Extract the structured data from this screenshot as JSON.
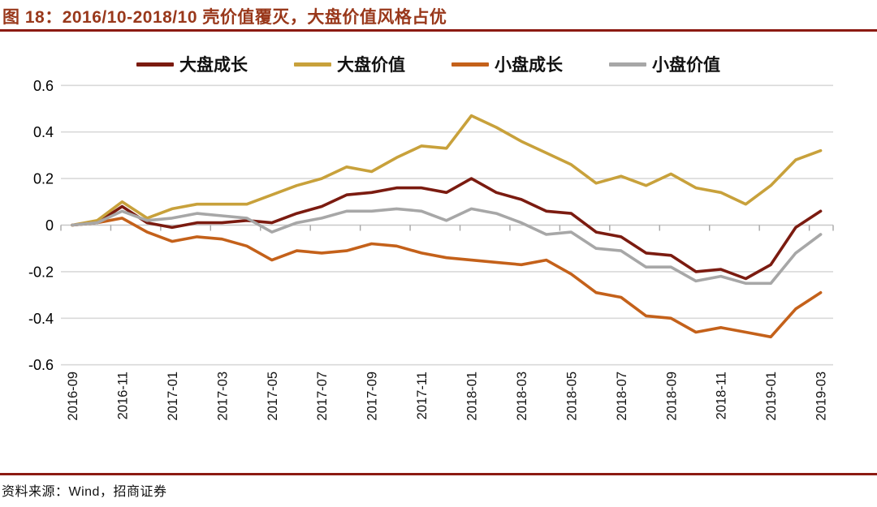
{
  "title": "图 18：2016/10-2018/10 壳价值覆灭，大盘价值风格占优",
  "source": "资料来源：Wind，招商证券",
  "colors": {
    "title_text": "#99381B",
    "rule": "#8C1A12",
    "gridline": "#D9D9D9",
    "zero_axis": "#C8C8C8",
    "tick": "#A6A6A6",
    "axis_text": "#000000"
  },
  "chart_data": {
    "type": "line",
    "title": "",
    "xlabel": "",
    "ylabel": "",
    "ylim": [
      -0.6,
      0.6
    ],
    "y_ticks": [
      0.6,
      0.4,
      0.2,
      0,
      -0.2,
      -0.4,
      -0.6
    ],
    "grid": "horizontal",
    "legend_position": "top",
    "x": [
      "2016-09",
      "2016-10",
      "2016-11",
      "2016-12",
      "2017-01",
      "2017-02",
      "2017-03",
      "2017-04",
      "2017-05",
      "2017-06",
      "2017-07",
      "2017-08",
      "2017-09",
      "2017-10",
      "2017-11",
      "2017-12",
      "2018-01",
      "2018-02",
      "2018-03",
      "2018-04",
      "2018-05",
      "2018-06",
      "2018-07",
      "2018-08",
      "2018-09",
      "2018-10",
      "2018-11",
      "2018-12",
      "2019-01",
      "2019-02",
      "2019-03"
    ],
    "x_tick_labels": [
      "2016-09",
      "2016-11",
      "2017-01",
      "2017-03",
      "2017-05",
      "2017-07",
      "2017-09",
      "2017-11",
      "2018-01",
      "2018-03",
      "2018-05",
      "2018-07",
      "2018-09",
      "2018-11",
      "2019-01",
      "2019-03"
    ],
    "series": [
      {
        "name": "大盘成长",
        "color": "#7B1B10",
        "values": [
          0,
          0.01,
          0.08,
          0.01,
          -0.01,
          0.01,
          0.01,
          0.02,
          0.01,
          0.05,
          0.08,
          0.13,
          0.14,
          0.16,
          0.16,
          0.14,
          0.2,
          0.14,
          0.11,
          0.06,
          0.05,
          -0.03,
          -0.05,
          -0.12,
          -0.13,
          -0.2,
          -0.19,
          -0.23,
          -0.17,
          -0.01,
          0.06
        ]
      },
      {
        "name": "大盘价值",
        "color": "#C8A13B",
        "values": [
          0,
          0.02,
          0.1,
          0.03,
          0.07,
          0.09,
          0.09,
          0.09,
          0.13,
          0.17,
          0.2,
          0.25,
          0.23,
          0.29,
          0.34,
          0.33,
          0.47,
          0.42,
          0.36,
          0.31,
          0.26,
          0.18,
          0.21,
          0.17,
          0.22,
          0.16,
          0.14,
          0.09,
          0.17,
          0.28,
          0.32
        ]
      },
      {
        "name": "小盘成长",
        "color": "#C4611A",
        "values": [
          0,
          0.01,
          0.03,
          -0.03,
          -0.07,
          -0.05,
          -0.06,
          -0.09,
          -0.15,
          -0.11,
          -0.12,
          -0.11,
          -0.08,
          -0.09,
          -0.12,
          -0.14,
          -0.15,
          -0.16,
          -0.17,
          -0.15,
          -0.21,
          -0.29,
          -0.31,
          -0.39,
          -0.4,
          -0.46,
          -0.44,
          -0.46,
          -0.48,
          -0.36,
          -0.29
        ]
      },
      {
        "name": "小盘价值",
        "color": "#A7A7A7",
        "values": [
          0,
          0.01,
          0.06,
          0.02,
          0.03,
          0.05,
          0.04,
          0.03,
          -0.03,
          0.01,
          0.03,
          0.06,
          0.06,
          0.07,
          0.06,
          0.02,
          0.07,
          0.05,
          0.01,
          -0.04,
          -0.03,
          -0.1,
          -0.11,
          -0.18,
          -0.18,
          -0.24,
          -0.22,
          -0.25,
          -0.25,
          -0.12,
          -0.04
        ]
      }
    ]
  }
}
